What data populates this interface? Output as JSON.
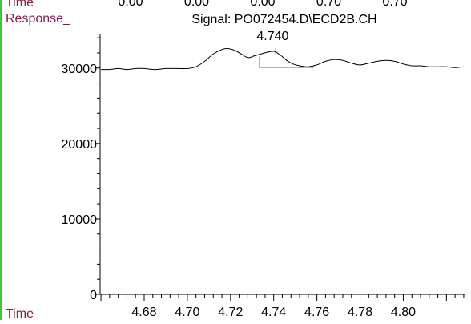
{
  "chart_data": {
    "type": "line",
    "title": "Signal: PO072454.D\\ECD2B.CH",
    "ylabel": "Response_",
    "xlabel": "Time",
    "top_strip": {
      "label": "Time",
      "partial_ticks": [
        "0.00",
        "0.00",
        "0.00",
        "0.70",
        "0.70"
      ]
    },
    "xlim": [
      4.6596,
      4.8284
    ],
    "ylim": [
      0,
      34440
    ],
    "xticks": [
      4.68,
      4.7,
      4.72,
      4.74,
      4.76,
      4.78,
      4.8
    ],
    "xtick_labels": [
      "4.68",
      "4.70",
      "4.72",
      "4.74",
      "4.76",
      "4.78",
      "4.80"
    ],
    "yticks": [
      0,
      10000,
      20000,
      30000
    ],
    "ytick_labels": [
      "0",
      "10000",
      "20000",
      "30000"
    ],
    "series": [
      {
        "color": "#000000",
        "x": [
          4.66,
          4.664,
          4.668,
          4.672,
          4.676,
          4.68,
          4.685,
          4.69,
          4.695,
          4.7,
          4.704,
          4.708,
          4.712,
          4.716,
          4.719,
          4.722,
          4.725,
          4.728,
          4.731,
          4.734,
          4.737,
          4.74,
          4.743,
          4.746,
          4.749,
          4.752,
          4.756,
          4.76,
          4.764,
          4.768,
          4.772,
          4.776,
          4.78,
          4.784,
          4.788,
          4.792,
          4.796,
          4.8,
          4.804,
          4.808,
          4.812,
          4.816,
          4.82,
          4.824,
          4.828
        ],
        "y": [
          29810,
          29810,
          29930,
          29810,
          29930,
          29930,
          29810,
          29930,
          29930,
          29930,
          30170,
          30890,
          31850,
          32450,
          32570,
          32330,
          31850,
          31370,
          31610,
          31850,
          32090,
          32210,
          31730,
          31010,
          30530,
          30290,
          30170,
          30410,
          30890,
          31130,
          31010,
          30650,
          30410,
          30650,
          30890,
          31010,
          30890,
          30530,
          30290,
          30290,
          30170,
          30170,
          30170,
          30050,
          30170
        ]
      }
    ],
    "peak_label": {
      "text": "4.740",
      "x": 4.741,
      "y": 32210
    },
    "baseline": {
      "color": "#33cccc",
      "points": [
        [
          4.7333,
          31490
        ],
        [
          4.7333,
          30050
        ],
        [
          4.7585,
          30050
        ],
        [
          4.7585,
          30170
        ]
      ]
    }
  }
}
